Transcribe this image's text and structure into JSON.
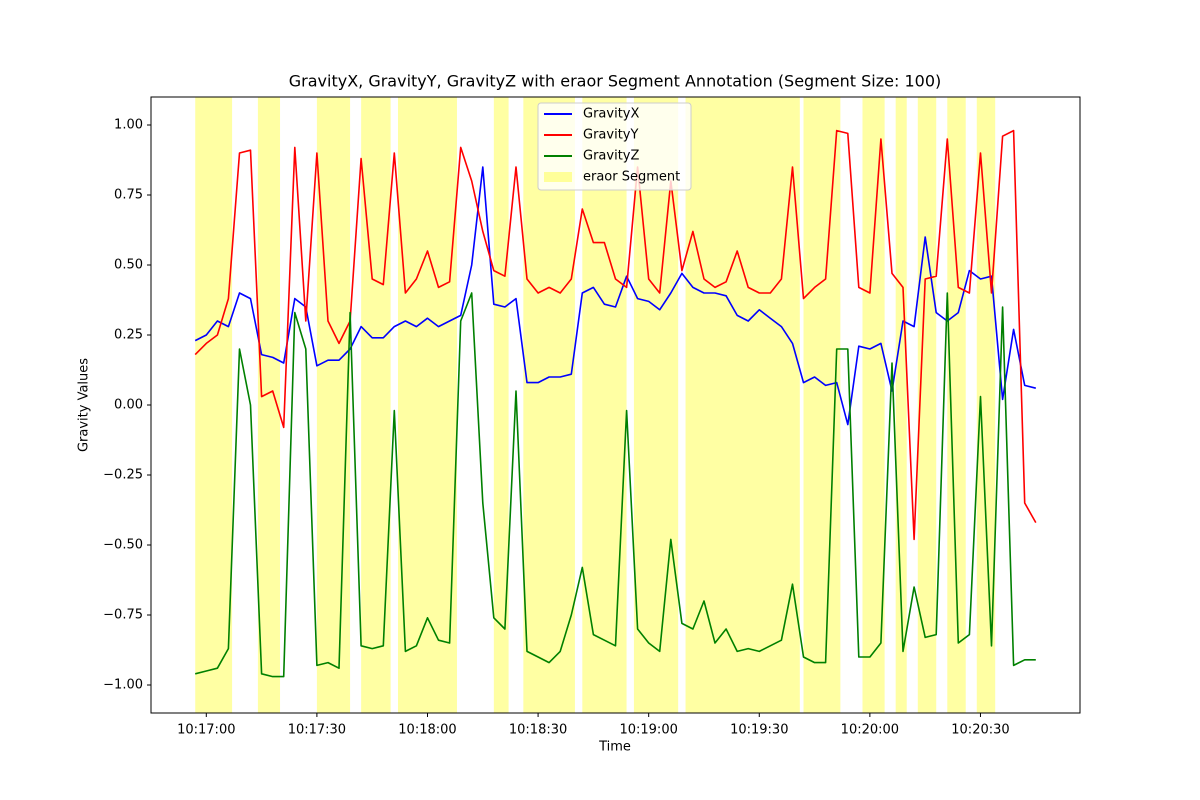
{
  "chart_data": {
    "type": "line",
    "title": "GravityX, GravityY, GravityZ with eraor Segment Annotation (Segment Size: 100)",
    "x_label": "Time",
    "y_label": "Gravity Values",
    "legend": "upper center",
    "x": [
      "10:16:57",
      "10:17:00",
      "10:17:03",
      "10:17:06",
      "10:17:09",
      "10:17:12",
      "10:17:15",
      "10:17:18",
      "10:17:21",
      "10:17:24",
      "10:17:27",
      "10:17:30",
      "10:17:33",
      "10:17:36",
      "10:17:39",
      "10:17:42",
      "10:17:45",
      "10:17:48",
      "10:17:51",
      "10:17:54",
      "10:17:57",
      "10:18:00",
      "10:18:03",
      "10:18:06",
      "10:18:09",
      "10:18:12",
      "10:18:15",
      "10:18:18",
      "10:18:21",
      "10:18:24",
      "10:18:27",
      "10:18:30",
      "10:18:33",
      "10:18:36",
      "10:18:39",
      "10:18:42",
      "10:18:45",
      "10:18:48",
      "10:18:51",
      "10:18:54",
      "10:18:57",
      "10:19:00",
      "10:19:03",
      "10:19:06",
      "10:19:09",
      "10:19:12",
      "10:19:15",
      "10:19:18",
      "10:19:21",
      "10:19:24",
      "10:19:27",
      "10:19:30",
      "10:19:33",
      "10:19:36",
      "10:19:39",
      "10:19:42",
      "10:19:45",
      "10:19:48",
      "10:19:51",
      "10:19:54",
      "10:19:57",
      "10:20:00",
      "10:20:03",
      "10:20:06",
      "10:20:09",
      "10:20:12",
      "10:20:15",
      "10:20:18",
      "10:20:21",
      "10:20:24",
      "10:20:27",
      "10:20:30",
      "10:20:33",
      "10:20:36",
      "10:20:39",
      "10:20:42",
      "10:20:45"
    ],
    "series": [
      {
        "name": "GravityX",
        "color": "#0000ff",
        "values": [
          0.23,
          0.25,
          0.3,
          0.28,
          0.4,
          0.38,
          0.18,
          0.17,
          0.15,
          0.38,
          0.35,
          0.14,
          0.16,
          0.16,
          0.2,
          0.28,
          0.24,
          0.24,
          0.28,
          0.3,
          0.28,
          0.31,
          0.28,
          0.3,
          0.32,
          0.5,
          0.85,
          0.36,
          0.35,
          0.38,
          0.08,
          0.08,
          0.1,
          0.1,
          0.11,
          0.4,
          0.42,
          0.36,
          0.35,
          0.46,
          0.38,
          0.37,
          0.34,
          0.4,
          0.47,
          0.42,
          0.4,
          0.4,
          0.39,
          0.32,
          0.3,
          0.34,
          0.31,
          0.28,
          0.22,
          0.08,
          0.1,
          0.07,
          0.08,
          -0.07,
          0.21,
          0.2,
          0.22,
          0.05,
          0.3,
          0.28,
          0.6,
          0.33,
          0.3,
          0.33,
          0.48,
          0.45,
          0.46,
          0.02,
          0.27,
          0.07,
          0.06
        ]
      },
      {
        "name": "GravityY",
        "color": "#ff0000",
        "values": [
          0.18,
          0.22,
          0.25,
          0.38,
          0.9,
          0.91,
          0.03,
          0.05,
          -0.08,
          0.92,
          0.3,
          0.9,
          0.3,
          0.22,
          0.3,
          0.88,
          0.45,
          0.43,
          0.9,
          0.4,
          0.45,
          0.55,
          0.42,
          0.44,
          0.92,
          0.8,
          0.62,
          0.48,
          0.46,
          0.85,
          0.45,
          0.4,
          0.42,
          0.4,
          0.45,
          0.7,
          0.58,
          0.58,
          0.45,
          0.42,
          0.85,
          0.45,
          0.4,
          0.8,
          0.48,
          0.62,
          0.45,
          0.42,
          0.44,
          0.55,
          0.42,
          0.4,
          0.4,
          0.45,
          0.85,
          0.38,
          0.42,
          0.45,
          0.98,
          0.97,
          0.42,
          0.4,
          0.95,
          0.47,
          0.42,
          -0.48,
          0.45,
          0.46,
          0.95,
          0.42,
          0.4,
          0.9,
          0.4,
          0.96,
          0.98,
          -0.35,
          -0.42
        ]
      },
      {
        "name": "GravityZ",
        "color": "#008000",
        "values": [
          -0.96,
          -0.95,
          -0.94,
          -0.87,
          0.2,
          0.0,
          -0.96,
          -0.97,
          -0.97,
          0.33,
          0.2,
          -0.93,
          -0.92,
          -0.94,
          0.33,
          -0.86,
          -0.87,
          -0.86,
          -0.02,
          -0.88,
          -0.86,
          -0.76,
          -0.84,
          -0.85,
          0.3,
          0.4,
          -0.35,
          -0.76,
          -0.8,
          0.05,
          -0.88,
          -0.9,
          -0.92,
          -0.88,
          -0.75,
          -0.58,
          -0.82,
          -0.84,
          -0.86,
          -0.02,
          -0.8,
          -0.85,
          -0.88,
          -0.48,
          -0.78,
          -0.8,
          -0.7,
          -0.85,
          -0.8,
          -0.88,
          -0.87,
          -0.88,
          -0.86,
          -0.84,
          -0.64,
          -0.9,
          -0.92,
          -0.92,
          0.2,
          0.2,
          -0.9,
          -0.9,
          -0.85,
          0.15,
          -0.88,
          -0.65,
          -0.83,
          -0.82,
          0.4,
          -0.85,
          -0.82,
          0.03,
          -0.86,
          0.35,
          -0.93,
          -0.91,
          -0.91
        ]
      }
    ],
    "segments": {
      "name": "eraor Segment",
      "color": "#ffff99",
      "spans": [
        [
          "10:16:57",
          "10:17:07"
        ],
        [
          "10:17:14",
          "10:17:20"
        ],
        [
          "10:17:30",
          "10:17:39"
        ],
        [
          "10:17:42",
          "10:17:50"
        ],
        [
          "10:17:52",
          "10:18:08"
        ],
        [
          "10:18:18",
          "10:18:22"
        ],
        [
          "10:18:26",
          "10:18:40"
        ],
        [
          "10:18:42",
          "10:18:54"
        ],
        [
          "10:18:56",
          "10:19:08"
        ],
        [
          "10:19:10",
          "10:19:41"
        ],
        [
          "10:19:42",
          "10:19:52"
        ],
        [
          "10:19:58",
          "10:20:04"
        ],
        [
          "10:20:07",
          "10:20:10"
        ],
        [
          "10:20:13",
          "10:20:18"
        ],
        [
          "10:20:21",
          "10:20:26"
        ],
        [
          "10:20:29",
          "10:20:34"
        ]
      ]
    },
    "xlim": [
      "10:16:45",
      "10:20:57"
    ],
    "xticks": [
      "10:17:00",
      "10:17:30",
      "10:18:00",
      "10:18:30",
      "10:19:00",
      "10:19:30",
      "10:20:00",
      "10:20:30"
    ],
    "ylim": [
      -1.1,
      1.1
    ],
    "yticks": [
      {
        "value": -1,
        "label": "−1.00"
      },
      {
        "value": -0.75,
        "label": "−0.75"
      },
      {
        "value": -0.5,
        "label": "−0.50"
      },
      {
        "value": -0.25,
        "label": "−0.25"
      },
      {
        "value": 0,
        "label": "0.00"
      },
      {
        "value": 0.25,
        "label": "0.25"
      },
      {
        "value": 0.5,
        "label": "0.50"
      },
      {
        "value": 0.75,
        "label": "0.75"
      },
      {
        "value": 1,
        "label": "1.00"
      }
    ]
  }
}
